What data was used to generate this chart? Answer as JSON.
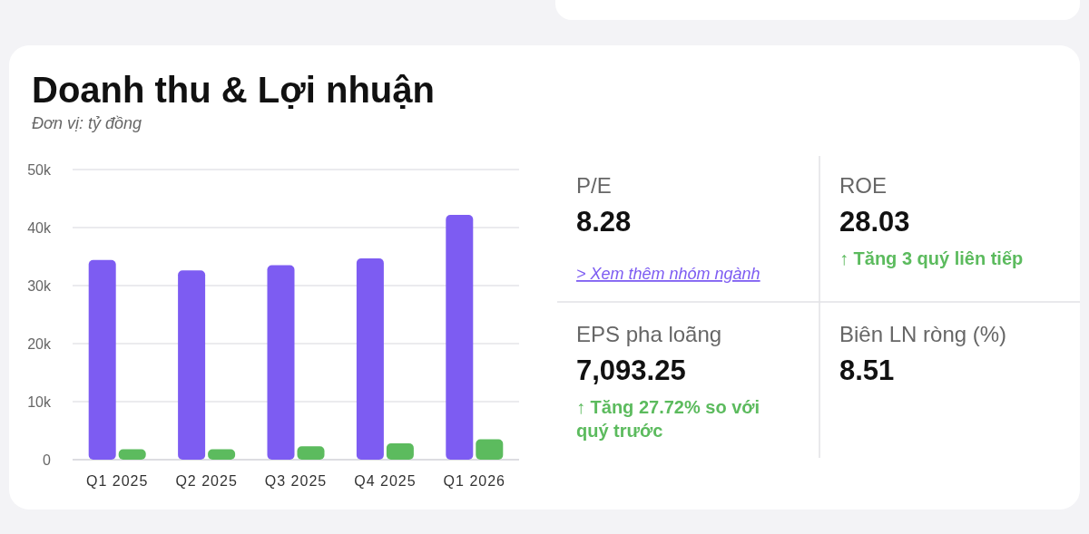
{
  "chart_data": [
    {
      "type": "bar",
      "title": "Doanh thu & Lợi nhuận",
      "subtitle": "Đơn vị: tỷ đồng",
      "categories": [
        "Q1 2025",
        "Q2 2025",
        "Q3 2025",
        "Q4 2025",
        "Q1 2026"
      ],
      "series": [
        {
          "color": "#7d5cf2",
          "values": [
            34400,
            32600,
            33500,
            34700,
            42200
          ]
        },
        {
          "color": "#5cbb5e",
          "values": [
            1800,
            1800,
            2300,
            2800,
            3500
          ]
        }
      ],
      "ylim": [
        0,
        50000
      ],
      "yticks": [
        {
          "value": 0,
          "label": "0"
        },
        {
          "value": 10000,
          "label": "10k"
        },
        {
          "value": 20000,
          "label": "20k"
        },
        {
          "value": 30000,
          "label": "30k"
        },
        {
          "value": 40000,
          "label": "40k"
        },
        {
          "value": 50000,
          "label": "50k"
        }
      ],
      "grid": "y"
    },
    {
      "type": "other",
      "categories": [
        "P/E",
        "ROE",
        "EPS pha loãng",
        "Biên LN ròng (%)"
      ],
      "value_labels": [
        "8.28",
        "28.03",
        "7,093.25",
        "8.51"
      ],
      "annotations": [
        "> Xem thêm nhóm ngành",
        "↑ Tăng 3 quý liên tiếp",
        "↑ Tăng 27.72% so với quý trước"
      ]
    }
  ]
}
